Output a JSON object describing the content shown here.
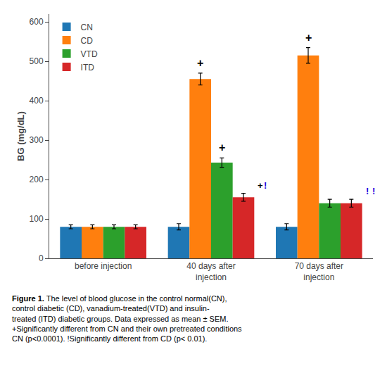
{
  "chart_data": {
    "type": "bar",
    "categories": [
      "before injection",
      "40 days after\ninjection",
      "70 days after\ninjection"
    ],
    "series": [
      {
        "name": "CN",
        "values": [
          80,
          80,
          80
        ],
        "errors": [
          5,
          8,
          8
        ]
      },
      {
        "name": "CD",
        "values": [
          80,
          455,
          515
        ],
        "errors": [
          5,
          15,
          20
        ]
      },
      {
        "name": "VTD",
        "values": [
          80,
          243,
          140
        ],
        "errors": [
          5,
          12,
          10
        ]
      },
      {
        "name": "ITD",
        "values": [
          80,
          155,
          140
        ],
        "errors": [
          5,
          10,
          10
        ]
      }
    ],
    "ylabel": "BG (mg/dL)",
    "ylim": [
      0,
      620
    ],
    "yticks": [
      0,
      100,
      200,
      300,
      400,
      500,
      600
    ],
    "grid": false,
    "legend": "upper left",
    "annotations": [
      {
        "text": "+",
        "category": "40 days after\ninjection",
        "series": "CD"
      },
      {
        "text": "+",
        "category": "40 days after\ninjection",
        "series": "VTD"
      },
      {
        "text": "+",
        "category": "40 days after\ninjection",
        "series": "ITD"
      },
      {
        "text": "!",
        "category": "40 days after\ninjection",
        "series": "ITD",
        "color": "#1a00e0"
      },
      {
        "text": "+",
        "category": "70 days after\ninjection",
        "series": "CD"
      },
      {
        "text": "!",
        "category": "70 days after\ninjection",
        "series": "ITD",
        "color": "#1a00e0"
      },
      {
        "text": "!",
        "category": "70 days after\ninjection",
        "series": "ITD",
        "color": "#1a00e0"
      }
    ],
    "caption_label": "Figure 1.",
    "caption": " The level of blood glucose in the control normal(CN),\ncontrol diabetic (CD), vanadium-treated(VTD) and insulin-\ntreated (ITD) diabetic groups. Data expressed as mean ± SEM.\n+Significantly different from CN and their own pretreated conditions\nCN (p<0.0001). !Significantly different from CD (p< 0.01)."
  }
}
